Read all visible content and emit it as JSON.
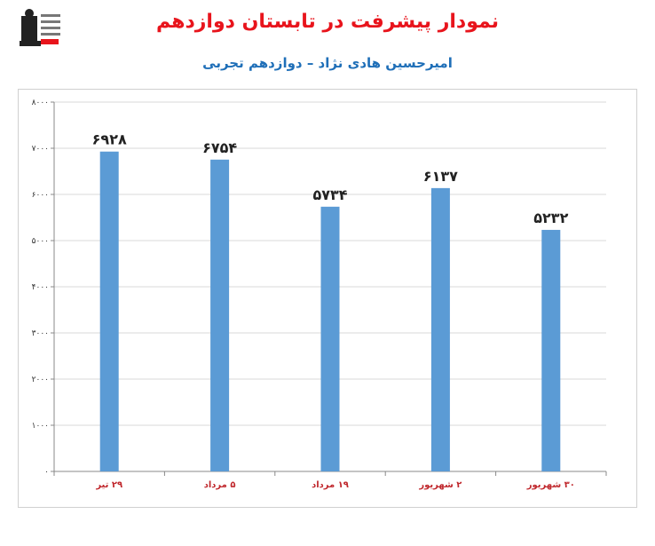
{
  "header": {
    "title": "نمودار پیشرفت در تابستان دوازدهم",
    "subtitle": "امیرحسین هادی نژاد – دوازدهم تجربی"
  },
  "chart_data": {
    "type": "bar",
    "categories": [
      "۲۹ تیر",
      "۵ مرداد",
      "۱۹ مرداد",
      "۲ شهریور",
      "۳۰ شهریور"
    ],
    "values": [
      6928,
      6754,
      5734,
      6137,
      5232
    ],
    "value_labels": [
      "۶۹۲۸",
      "۶۷۵۴",
      "۵۷۳۴",
      "۶۱۳۷",
      "۵۲۳۲"
    ],
    "title": "نمودار پیشرفت در تابستان دوازدهم",
    "subtitle": "امیرحسین هادی نژاد – دوازدهم تجربی",
    "xlabel": "",
    "ylabel": "",
    "ylim": [
      0,
      8000
    ],
    "yticks": [
      0,
      1000,
      2000,
      3000,
      4000,
      5000,
      6000,
      7000,
      8000
    ],
    "ytick_labels": [
      "۰",
      "۱۰۰۰",
      "۲۰۰۰",
      "۳۰۰۰",
      "۴۰۰۰",
      "۵۰۰۰",
      "۶۰۰۰",
      "۷۰۰۰",
      "۸۰۰۰"
    ],
    "grid": true,
    "bar_color": "#5b9bd5",
    "category_color": "#c0282d"
  }
}
